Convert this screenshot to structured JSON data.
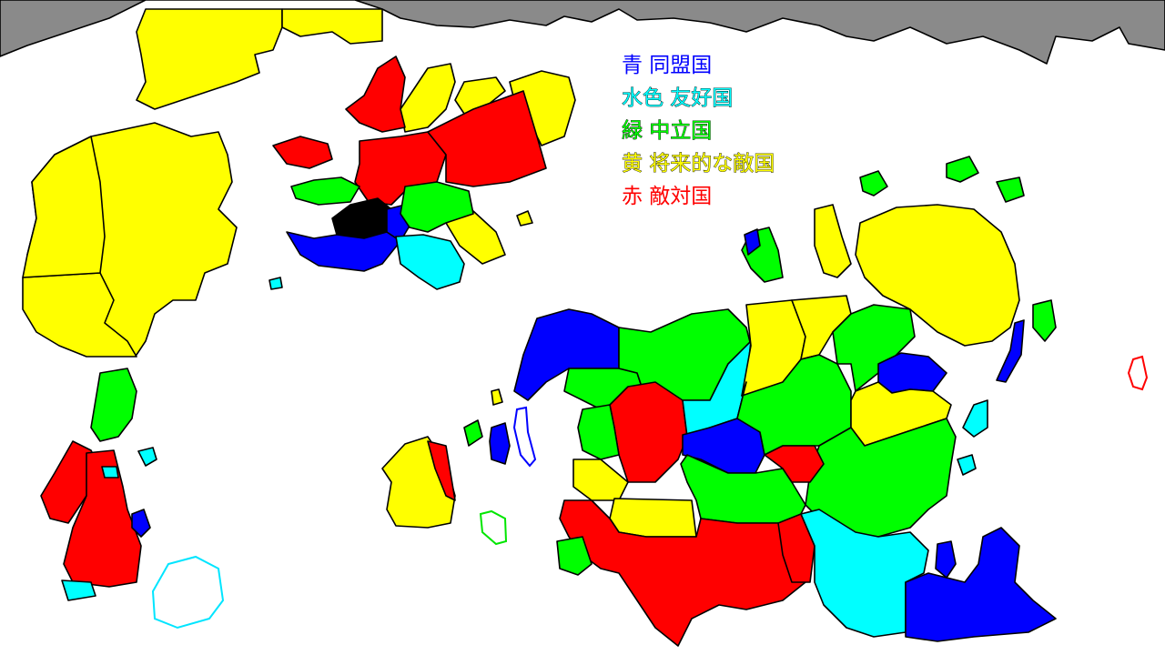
{
  "colors": {
    "ally": "#0000ff",
    "friendly": "#00ffff",
    "neutral": "#00ff00",
    "future_enemy": "#ffff00",
    "enemy": "#ff0000",
    "unknown": "#000000",
    "ice": "#8a8a8a",
    "sea": "#ffffff"
  },
  "legend": [
    {
      "key": "ally",
      "label": "青 同盟国",
      "color": "#0000ff"
    },
    {
      "key": "friendly",
      "label": "水色 友好国",
      "color": "#00ffff"
    },
    {
      "key": "neutral",
      "label": "緑 中立国",
      "color": "#00ff00"
    },
    {
      "key": "future_enemy",
      "label": "黄 将来的な敵国",
      "color": "#ffff00"
    },
    {
      "key": "enemy",
      "label": "赤 敵対国",
      "color": "#ff0000"
    }
  ]
}
